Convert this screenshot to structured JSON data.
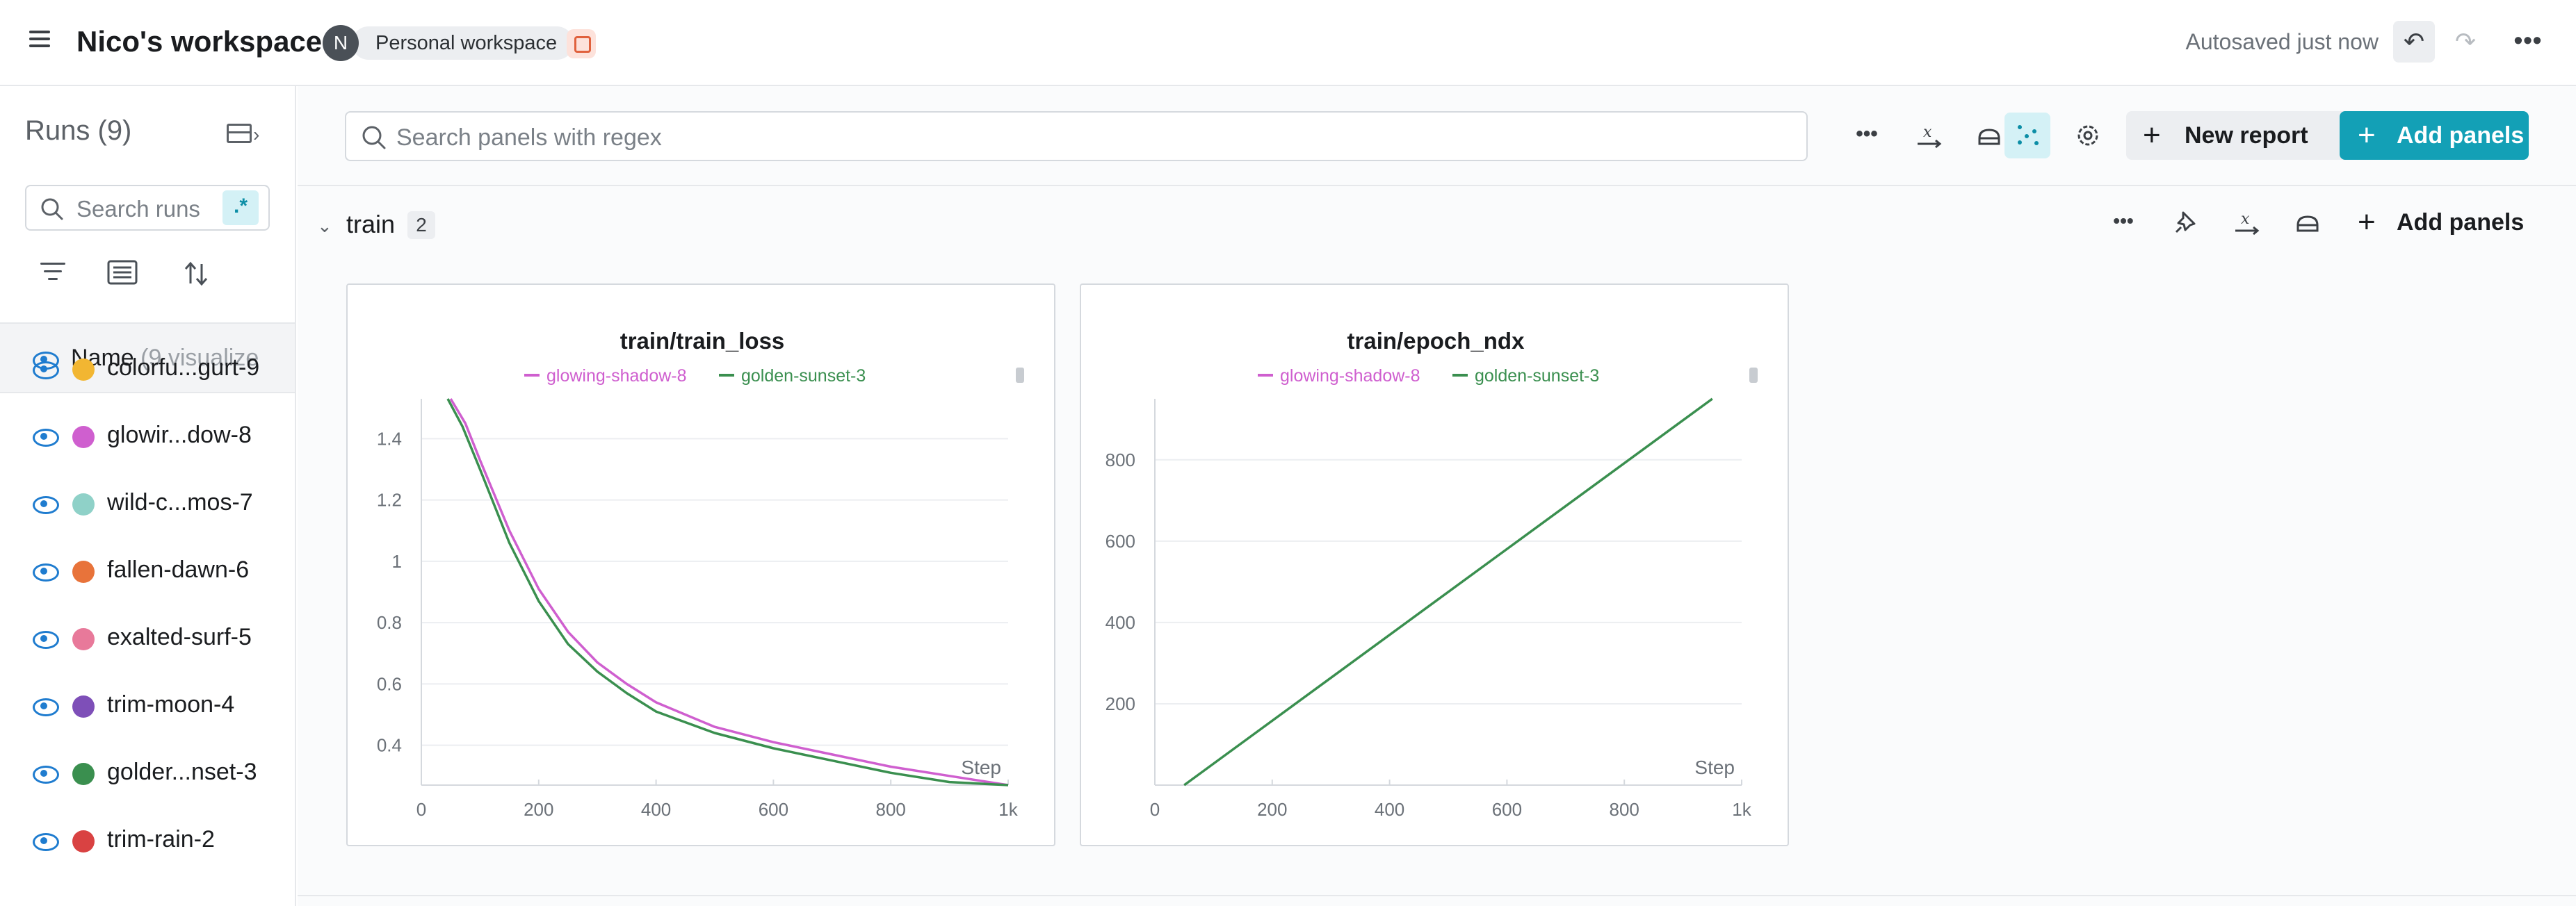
{
  "header": {
    "workspace_title": "Nico's workspace",
    "avatar_initial": "N",
    "workspace_badge": "Personal workspace",
    "autosave_status": "Autosaved just now"
  },
  "sidebar": {
    "runs_title": "Runs (9)",
    "search_placeholder": "Search runs",
    "regex_label": ".*",
    "name_column": "Name",
    "name_hint": "(9 visualize",
    "runs": [
      {
        "name": "colorfu...gurt-9",
        "color": "#f2b632"
      },
      {
        "name": "glowir...dow-8",
        "color": "#cf5fcf"
      },
      {
        "name": "wild-c...mos-7",
        "color": "#8fd1c8"
      },
      {
        "name": "fallen-dawn-6",
        "color": "#e8733a"
      },
      {
        "name": "exalted-surf-5",
        "color": "#e8799a"
      },
      {
        "name": "trim-moon-4",
        "color": "#7e4fb8"
      },
      {
        "name": "golder...nset-3",
        "color": "#3a8f4f"
      },
      {
        "name": "trim-rain-2",
        "color": "#d94242"
      }
    ]
  },
  "toolbar": {
    "search_placeholder": "Search panels with regex",
    "new_report_label": "New report",
    "add_panels_label": "Add panels"
  },
  "section": {
    "title": "train",
    "count": "2",
    "add_panels_label": "Add panels"
  },
  "colors": {
    "accent": "#13a0b6",
    "series_glowing_shadow": "#cf5fcf",
    "series_golden_sunset": "#3a8f4f"
  },
  "chart_data": [
    {
      "type": "line",
      "title": "train/train_loss",
      "xlabel": "Step",
      "ylabel": "",
      "xlim": [
        0,
        1000
      ],
      "ylim": [
        0.27,
        1.53
      ],
      "x_ticks": [
        "0",
        "200",
        "400",
        "600",
        "800",
        "1k"
      ],
      "y_ticks": [
        "0.4",
        "0.6",
        "0.8",
        "1",
        "1.2",
        "1.4"
      ],
      "y_tick_values": [
        0.4,
        0.6,
        0.8,
        1.0,
        1.2,
        1.4
      ],
      "legend": "top-center",
      "grid": true,
      "series": [
        {
          "name": "glowing-shadow-8",
          "color": "#cf5fcf",
          "x": [
            50,
            75,
            100,
            150,
            200,
            250,
            300,
            350,
            400,
            500,
            600,
            700,
            800,
            900,
            1000
          ],
          "y": [
            1.53,
            1.45,
            1.33,
            1.1,
            0.91,
            0.77,
            0.67,
            0.6,
            0.54,
            0.46,
            0.41,
            0.37,
            0.33,
            0.3,
            0.27
          ]
        },
        {
          "name": "golden-sunset-3",
          "color": "#3a8f4f",
          "x": [
            45,
            70,
            100,
            150,
            200,
            250,
            300,
            350,
            400,
            500,
            600,
            700,
            800,
            900,
            1000
          ],
          "y": [
            1.53,
            1.44,
            1.3,
            1.06,
            0.87,
            0.73,
            0.64,
            0.57,
            0.51,
            0.44,
            0.39,
            0.35,
            0.31,
            0.28,
            0.25
          ]
        }
      ]
    },
    {
      "type": "line",
      "title": "train/epoch_ndx",
      "xlabel": "Step",
      "ylabel": "",
      "xlim": [
        0,
        1000
      ],
      "ylim": [
        0,
        950
      ],
      "x_ticks": [
        "0",
        "200",
        "400",
        "600",
        "800",
        "1k"
      ],
      "y_ticks": [
        "200",
        "400",
        "600",
        "800"
      ],
      "y_tick_values": [
        200,
        400,
        600,
        800
      ],
      "legend": "top-center",
      "grid": true,
      "series": [
        {
          "name": "glowing-shadow-8",
          "color": "#cf5fcf",
          "x": [],
          "y": []
        },
        {
          "name": "golden-sunset-3",
          "color": "#3a8f4f",
          "x": [
            50,
            950
          ],
          "y": [
            0,
            950
          ]
        }
      ]
    }
  ]
}
